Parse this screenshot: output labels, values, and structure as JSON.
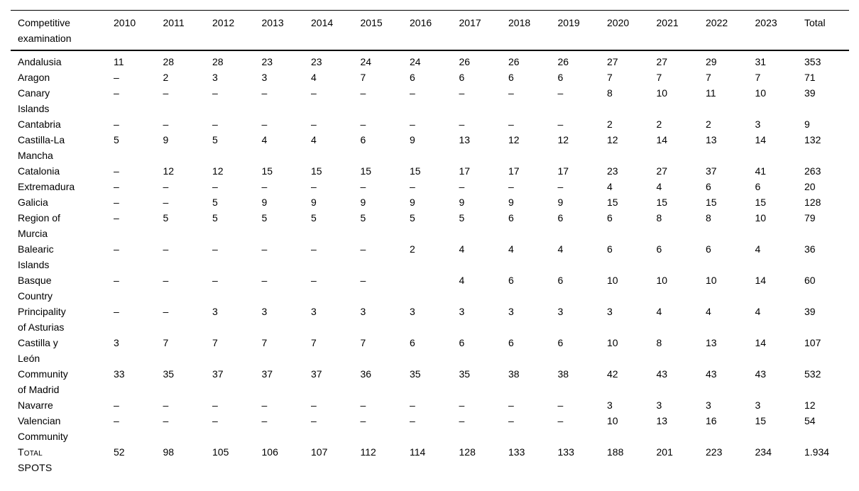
{
  "table": {
    "columns": [
      "Competitive\nexamination",
      "2010",
      "2011",
      "2012",
      "2013",
      "2014",
      "2015",
      "2016",
      "2017",
      "2018",
      "2019",
      "2020",
      "2021",
      "2022",
      "2023",
      "Total"
    ],
    "rows": [
      {
        "region": "Andalusia",
        "small_caps": false,
        "values": [
          "11",
          "28",
          "28",
          "23",
          "23",
          "24",
          "24",
          "26",
          "26",
          "26",
          "27",
          "27",
          "29",
          "31",
          "353"
        ]
      },
      {
        "region": "Aragon",
        "small_caps": false,
        "values": [
          "–",
          "2",
          "3",
          "3",
          "4",
          "7",
          "6",
          "6",
          "6",
          "6",
          "7",
          "7",
          "7",
          "7",
          "71"
        ]
      },
      {
        "region": "Canary\nIslands",
        "small_caps": false,
        "values": [
          "–",
          "–",
          "–",
          "–",
          "–",
          "–",
          "–",
          "–",
          "–",
          "–",
          "8",
          "10",
          "11",
          "10",
          "39"
        ]
      },
      {
        "region": "Cantabria",
        "small_caps": false,
        "values": [
          "–",
          "–",
          "–",
          "–",
          "–",
          "–",
          "–",
          "–",
          "–",
          "–",
          "2",
          "2",
          "2",
          "3",
          "9"
        ]
      },
      {
        "region": "Castilla-La\nMancha",
        "small_caps": false,
        "values": [
          "5",
          "9",
          "5",
          "4",
          "4",
          "6",
          "9",
          "13",
          "12",
          "12",
          "12",
          "14",
          "13",
          "14",
          "132"
        ]
      },
      {
        "region": "Catalonia",
        "small_caps": false,
        "values": [
          "–",
          "12",
          "12",
          "15",
          "15",
          "15",
          "15",
          "17",
          "17",
          "17",
          "23",
          "27",
          "37",
          "41",
          "263"
        ]
      },
      {
        "region": "Extremadura",
        "small_caps": false,
        "values": [
          "–",
          "–",
          "–",
          "–",
          "–",
          "–",
          "–",
          "–",
          "–",
          "–",
          "4",
          "4",
          "6",
          "6",
          "20"
        ]
      },
      {
        "region": "Galicia",
        "small_caps": false,
        "values": [
          "–",
          "–",
          "5",
          "9",
          "9",
          "9",
          "9",
          "9",
          "9",
          "9",
          "15",
          "15",
          "15",
          "15",
          "128"
        ]
      },
      {
        "region": "Region of\nMurcia",
        "small_caps": false,
        "values": [
          "–",
          "5",
          "5",
          "5",
          "5",
          "5",
          "5",
          "5",
          "6",
          "6",
          "6",
          "8",
          "8",
          "10",
          "79"
        ]
      },
      {
        "region": "Balearic\nIslands",
        "small_caps": false,
        "values": [
          "–",
          "–",
          "–",
          "–",
          "–",
          "–",
          "2",
          "4",
          "4",
          "4",
          "6",
          "6",
          "6",
          "4",
          "36"
        ]
      },
      {
        "region": "Basque\nCountry",
        "small_caps": false,
        "values": [
          "–",
          "–",
          "–",
          "–",
          "–",
          "–",
          "",
          "4",
          "6",
          "6",
          "10",
          "10",
          "10",
          "14",
          "60"
        ]
      },
      {
        "region": "Principality\nof Asturias",
        "small_caps": false,
        "values": [
          "–",
          "–",
          "3",
          "3",
          "3",
          "3",
          "3",
          "3",
          "3",
          "3",
          "3",
          "4",
          "4",
          "4",
          "39"
        ]
      },
      {
        "region": "Castilla y\nLeón",
        "small_caps": false,
        "values": [
          "3",
          "7",
          "7",
          "7",
          "7",
          "7",
          "6",
          "6",
          "6",
          "6",
          "10",
          "8",
          "13",
          "14",
          "107"
        ]
      },
      {
        "region": "Community\nof Madrid",
        "small_caps": false,
        "values": [
          "33",
          "35",
          "37",
          "37",
          "37",
          "36",
          "35",
          "35",
          "38",
          "38",
          "42",
          "43",
          "43",
          "43",
          "532"
        ]
      },
      {
        "region": "Navarre",
        "small_caps": false,
        "values": [
          "–",
          "–",
          "–",
          "–",
          "–",
          "–",
          "–",
          "–",
          "–",
          "–",
          "3",
          "3",
          "3",
          "3",
          "12"
        ]
      },
      {
        "region": "Valencian\nCommunity",
        "small_caps": false,
        "values": [
          "–",
          "–",
          "–",
          "–",
          "–",
          "–",
          "–",
          "–",
          "–",
          "–",
          "10",
          "13",
          "16",
          "15",
          "54"
        ]
      },
      {
        "region": "Total\nSPOTS",
        "small_caps": true,
        "values": [
          "52",
          "98",
          "105",
          "106",
          "107",
          "112",
          "114",
          "128",
          "133",
          "133",
          "188",
          "201",
          "223",
          "234",
          "1.934"
        ]
      }
    ]
  },
  "colors": {
    "text": "#000000",
    "background": "#ffffff",
    "rule": "#000000"
  }
}
